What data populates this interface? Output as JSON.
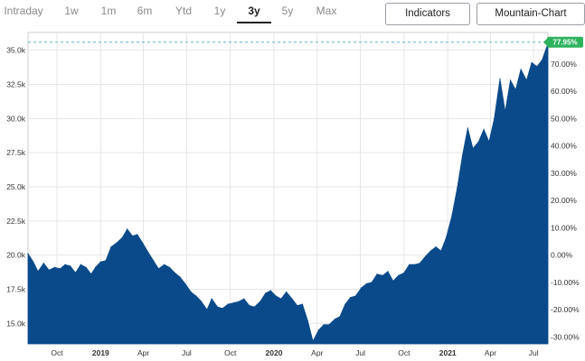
{
  "toolbar": {
    "ranges": [
      {
        "label": "Intraday",
        "active": false
      },
      {
        "label": "1w",
        "active": false
      },
      {
        "label": "1m",
        "active": false
      },
      {
        "label": "6m",
        "active": false
      },
      {
        "label": "Ytd",
        "active": false
      },
      {
        "label": "1y",
        "active": false
      },
      {
        "label": "3y",
        "active": true
      },
      {
        "label": "5y",
        "active": false
      },
      {
        "label": "Max",
        "active": false
      }
    ],
    "indicators_label": "Indicators",
    "chart_type_label": "Mountain-Chart"
  },
  "colors": {
    "area_fill": "#0a4a8a",
    "last_value_badge": "#2db35d",
    "grid": "#e6e6e6",
    "reference_line": "#5cb3c9"
  },
  "chart_data": {
    "type": "area",
    "title": "",
    "xlabel": "",
    "ylabel": "",
    "x_start": "2018-08-01",
    "x_end": "2021-07-31",
    "ylim": [
      13500,
      36300
    ],
    "y_ticks": [
      15000,
      17500,
      20000,
      22500,
      25000,
      27500,
      30000,
      32500,
      35000
    ],
    "y_tick_labels": [
      "15.0k",
      "17.5k",
      "20.0k",
      "22.5k",
      "25.0k",
      "27.5k",
      "30.0k",
      "32.5k",
      "35.0k"
    ],
    "pct_ticks": [
      -30,
      -20,
      -10,
      0,
      10,
      20,
      30,
      40,
      50,
      60,
      70
    ],
    "pct_tick_labels": [
      "-30.00%",
      "-20.00%",
      "-10.00%",
      "0.00%",
      "10.00%",
      "20.00%",
      "30.00%",
      "40.00%",
      "50.00%",
      "60.00%",
      "70.00%"
    ],
    "pct_base": 20000,
    "x_ticks": [
      {
        "label": "Oct",
        "date": "2018-10-01",
        "bold": false
      },
      {
        "label": "2019",
        "date": "2019-01-01",
        "bold": true
      },
      {
        "label": "Apr",
        "date": "2019-04-01",
        "bold": false
      },
      {
        "label": "Jul",
        "date": "2019-07-01",
        "bold": false
      },
      {
        "label": "Oct",
        "date": "2019-10-01",
        "bold": false
      },
      {
        "label": "2020",
        "date": "2020-01-01",
        "bold": true
      },
      {
        "label": "Apr",
        "date": "2020-04-01",
        "bold": false
      },
      {
        "label": "Jul",
        "date": "2020-07-01",
        "bold": false
      },
      {
        "label": "Oct",
        "date": "2020-10-01",
        "bold": false
      },
      {
        "label": "2021",
        "date": "2021-01-01",
        "bold": true
      },
      {
        "label": "Apr",
        "date": "2021-04-01",
        "bold": false
      },
      {
        "label": "Jul",
        "date": "2021-07-01",
        "bold": false
      }
    ],
    "last_value_label": "77.95%",
    "reference_value": 35590,
    "grid": true,
    "series": [
      {
        "x": [
          "2018-08-01",
          "2018-08-12",
          "2018-08-22",
          "2018-09-03",
          "2018-09-14",
          "2018-09-26",
          "2018-10-08",
          "2018-10-18",
          "2018-10-29",
          "2018-11-09",
          "2018-11-20",
          "2018-12-01",
          "2018-12-12",
          "2018-12-21",
          "2019-01-01",
          "2019-01-12",
          "2019-01-23",
          "2019-02-04",
          "2019-02-16",
          "2019-02-26",
          "2019-03-09",
          "2019-03-19",
          "2019-03-30",
          "2019-04-11",
          "2019-04-22",
          "2019-05-03",
          "2019-05-15",
          "2019-05-26",
          "2019-06-06",
          "2019-06-17",
          "2019-06-28",
          "2019-07-10",
          "2019-07-21",
          "2019-08-01",
          "2019-08-13",
          "2019-08-23",
          "2019-09-04",
          "2019-09-15",
          "2019-09-26",
          "2019-10-08",
          "2019-10-19",
          "2019-10-30",
          "2019-11-10",
          "2019-11-21",
          "2019-12-03",
          "2019-12-14",
          "2019-12-25",
          "2020-01-05",
          "2020-01-16",
          "2020-01-27",
          "2020-02-08",
          "2020-02-19",
          "2020-03-01",
          "2020-03-12",
          "2020-03-23",
          "2020-04-04",
          "2020-04-15",
          "2020-04-26",
          "2020-05-08",
          "2020-05-19",
          "2020-05-30",
          "2020-06-10",
          "2020-06-21",
          "2020-07-03",
          "2020-07-14",
          "2020-07-25",
          "2020-08-05",
          "2020-08-17",
          "2020-08-28",
          "2020-09-08",
          "2020-09-19",
          "2020-10-01",
          "2020-10-12",
          "2020-10-23",
          "2020-11-03",
          "2020-11-15",
          "2020-11-26",
          "2020-12-07",
          "2020-12-18",
          "2020-12-29",
          "2021-01-10",
          "2021-01-21",
          "2021-02-01",
          "2021-02-12",
          "2021-02-23",
          "2021-03-07",
          "2021-03-18",
          "2021-03-29",
          "2021-04-09",
          "2021-04-21",
          "2021-05-02",
          "2021-05-13",
          "2021-05-24",
          "2021-06-04",
          "2021-06-16",
          "2021-06-27",
          "2021-07-08",
          "2021-07-19",
          "2021-07-31"
        ],
        "values": [
          20100,
          19500,
          18800,
          19400,
          18900,
          19100,
          19000,
          19300,
          19200,
          18700,
          19300,
          19100,
          18600,
          19100,
          19500,
          19600,
          20600,
          20900,
          21300,
          21900,
          21400,
          21500,
          20900,
          20200,
          19600,
          19000,
          19300,
          19100,
          18700,
          18400,
          17900,
          17300,
          17000,
          16600,
          16000,
          16800,
          16200,
          16100,
          16400,
          16500,
          16600,
          16800,
          16300,
          16200,
          16600,
          17200,
          17400,
          17000,
          16800,
          17300,
          16800,
          16300,
          16400,
          15200,
          13700,
          14500,
          14900,
          14900,
          15300,
          15500,
          16400,
          16900,
          17000,
          17600,
          17900,
          18000,
          18600,
          18500,
          18800,
          18100,
          18500,
          18700,
          19300,
          19300,
          19400,
          19900,
          20300,
          20600,
          20300,
          21300,
          22900,
          24900,
          27300,
          29300,
          27800,
          28300,
          29200,
          28300,
          30000,
          32900,
          30500,
          32800,
          32100,
          33600,
          32800,
          34100,
          33800,
          34300,
          35500
        ]
      }
    ]
  }
}
